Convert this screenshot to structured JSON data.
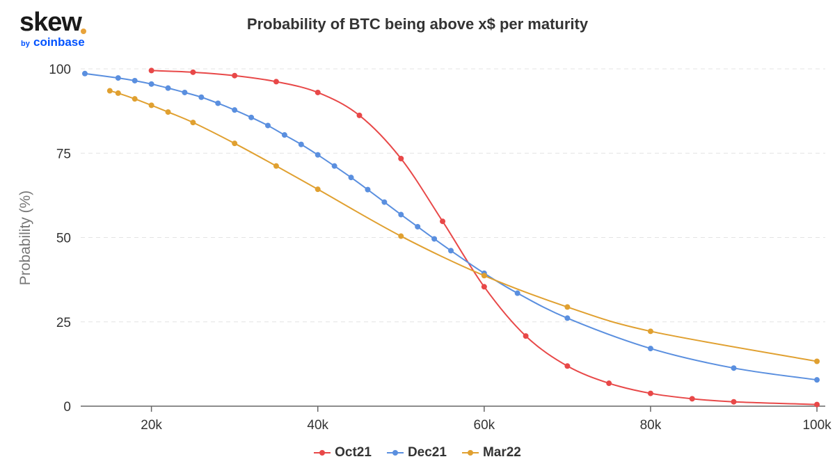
{
  "brand": {
    "name": "skew",
    "by": "by",
    "company": "coinbase"
  },
  "chart_data": {
    "type": "line",
    "title": "Probability of BTC being above x$ per maturity",
    "xlabel": "",
    "ylabel": "Probability (%)",
    "xlim": [
      11500,
      101000
    ],
    "ylim": [
      0,
      100
    ],
    "xticks": [
      {
        "value": 20000,
        "label": "20k"
      },
      {
        "value": 40000,
        "label": "40k"
      },
      {
        "value": 60000,
        "label": "60k"
      },
      {
        "value": 80000,
        "label": "80k"
      },
      {
        "value": 100000,
        "label": "100k"
      }
    ],
    "yticks": [
      {
        "value": 0,
        "label": "0"
      },
      {
        "value": 25,
        "label": "25"
      },
      {
        "value": 50,
        "label": "50"
      },
      {
        "value": 75,
        "label": "75"
      },
      {
        "value": 100,
        "label": "100"
      }
    ],
    "grid": "horizontal dashed",
    "legend_position": "bottom-center",
    "series": [
      {
        "name": "Oct21",
        "color": "#e84848",
        "points": [
          [
            20000,
            99.5
          ],
          [
            25000,
            99
          ],
          [
            30000,
            98
          ],
          [
            35000,
            96.2
          ],
          [
            40000,
            93
          ],
          [
            45000,
            86.2
          ],
          [
            50000,
            73.4
          ],
          [
            55000,
            54.8
          ],
          [
            60000,
            35.4
          ],
          [
            65000,
            20.8
          ],
          [
            70000,
            11.9
          ],
          [
            75000,
            6.8
          ],
          [
            80000,
            3.8
          ],
          [
            85000,
            2.2
          ],
          [
            90000,
            1.3
          ],
          [
            100000,
            0.5
          ]
        ]
      },
      {
        "name": "Dec21",
        "color": "#5a8fdf",
        "points": [
          [
            12000,
            98.6
          ],
          [
            16000,
            97.3
          ],
          [
            18000,
            96.5
          ],
          [
            20000,
            95.5
          ],
          [
            22000,
            94.3
          ],
          [
            24000,
            93
          ],
          [
            26000,
            91.6
          ],
          [
            28000,
            89.8
          ],
          [
            30000,
            87.8
          ],
          [
            32000,
            85.6
          ],
          [
            34000,
            83.2
          ],
          [
            36000,
            80.4
          ],
          [
            38000,
            77.6
          ],
          [
            40000,
            74.5
          ],
          [
            42000,
            71.2
          ],
          [
            44000,
            67.8
          ],
          [
            46000,
            64.2
          ],
          [
            48000,
            60.5
          ],
          [
            50000,
            56.8
          ],
          [
            52000,
            53.2
          ],
          [
            54000,
            49.6
          ],
          [
            56000,
            46.1
          ],
          [
            60000,
            39.4
          ],
          [
            64000,
            33.5
          ],
          [
            70000,
            26.1
          ],
          [
            80000,
            17.1
          ],
          [
            90000,
            11.3
          ],
          [
            100000,
            7.8
          ]
        ]
      },
      {
        "name": "Mar22",
        "color": "#e0a030",
        "points": [
          [
            15000,
            93.5
          ],
          [
            16000,
            92.8
          ],
          [
            18000,
            91.1
          ],
          [
            20000,
            89.2
          ],
          [
            22000,
            87.2
          ],
          [
            25000,
            84.1
          ],
          [
            30000,
            77.9
          ],
          [
            35000,
            71.2
          ],
          [
            40000,
            64.3
          ],
          [
            50000,
            50.4
          ],
          [
            60000,
            38.7
          ],
          [
            70000,
            29.4
          ],
          [
            80000,
            22.2
          ],
          [
            100000,
            13.3
          ]
        ]
      }
    ]
  }
}
